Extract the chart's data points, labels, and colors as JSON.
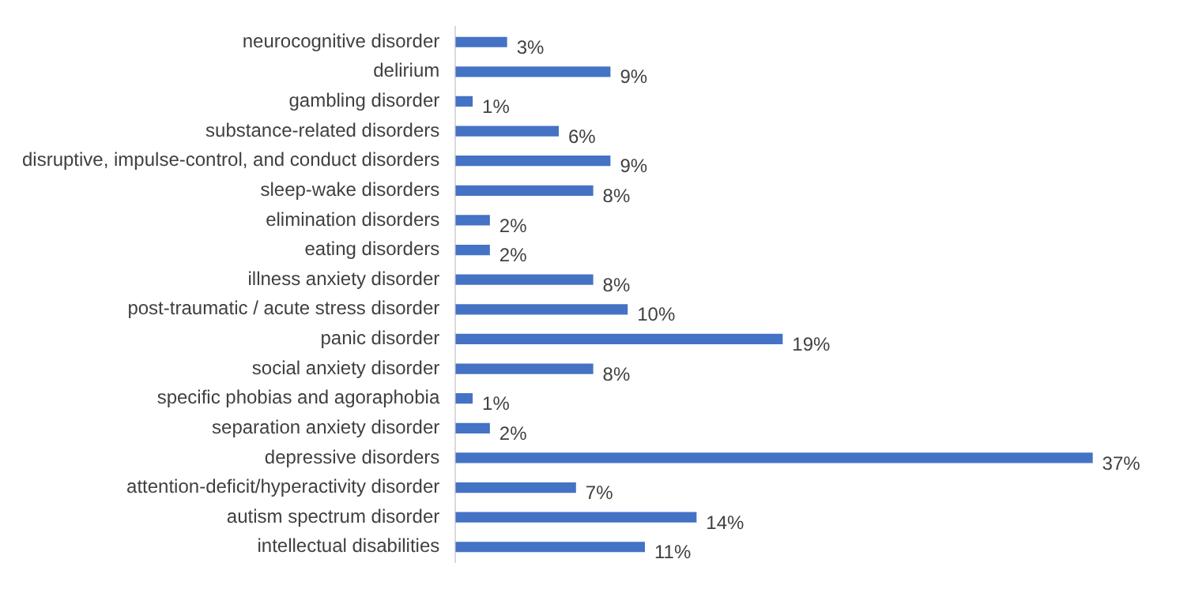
{
  "chart_data": {
    "type": "bar",
    "orientation": "horizontal",
    "color": "#4472c4",
    "categories": [
      "neurocognitive disorder",
      "delirium",
      "gambling disorder",
      "substance-related disorders",
      "disruptive, impulse-control, and conduct disorders",
      "sleep-wake disorders",
      "elimination disorders",
      "eating disorders",
      "illness anxiety disorder",
      "post-traumatic / acute stress disorder",
      "panic disorder",
      "social anxiety disorder",
      "specific phobias and agoraphobia",
      "separation anxiety disorder",
      "depressive disorders",
      "attention-deficit/hyperactivity disorder",
      "autism spectrum disorder",
      "intellectual disabilities"
    ],
    "values": [
      3,
      9,
      1,
      6,
      9,
      8,
      2,
      2,
      8,
      10,
      19,
      8,
      1,
      2,
      37,
      7,
      14,
      11
    ],
    "value_labels": [
      "3%",
      "9%",
      "1%",
      "6%",
      "9%",
      "8%",
      "2%",
      "2%",
      "8%",
      "10%",
      "19%",
      "8%",
      "1%",
      "2%",
      "37%",
      "7%",
      "14%",
      "11%"
    ]
  }
}
